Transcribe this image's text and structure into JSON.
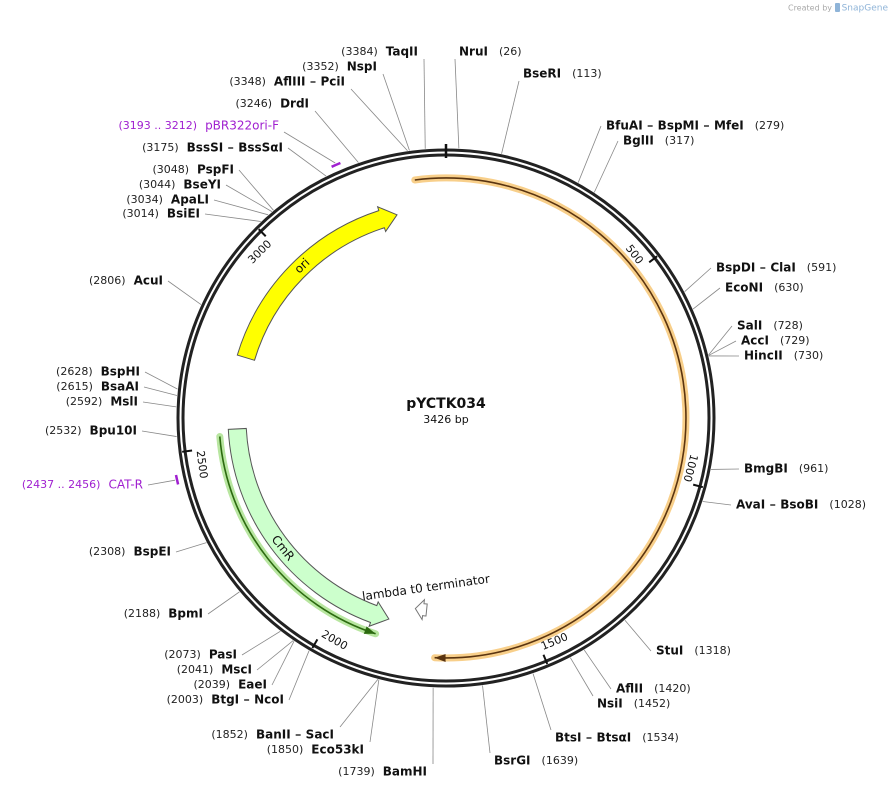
{
  "watermark": {
    "prefix": "Created by",
    "brand": "SnapGene"
  },
  "plasmid": {
    "name": "pYCTK034",
    "length": {
      "value": 3426,
      "label": "3426 bp"
    }
  },
  "ticks": [
    500,
    1000,
    1500,
    2000,
    2500,
    3000
  ],
  "features": [
    {
      "name": "ori",
      "start": 2729,
      "end": 3297,
      "strand": 1,
      "color": "#ffff00"
    },
    {
      "name": "CmR",
      "start": 1864,
      "end": 2541,
      "strand": -1,
      "color": "#ccffcc"
    },
    {
      "name": "lambda t0 terminator",
      "start": 1768,
      "end": 1800,
      "strand": 1,
      "color": "#ffffff"
    }
  ],
  "primers": [
    {
      "name": "pBR322ori-F",
      "location": "(3193 .. 3212)",
      "start": 3193,
      "end": 3212
    },
    {
      "name": "CAT-R",
      "location": "(2437 .. 2456)",
      "start": 2437,
      "end": 2456
    }
  ],
  "enzymes": [
    {
      "names": [
        "TaqII"
      ],
      "position": {
        "value": 3384,
        "label": "(3384)"
      }
    },
    {
      "names": [
        "NspI"
      ],
      "position": {
        "value": 3352,
        "label": "(3352)"
      }
    },
    {
      "names": [
        "AflIII",
        "PciI"
      ],
      "position": {
        "value": 3348,
        "label": "(3348)"
      }
    },
    {
      "names": [
        "DrdI"
      ],
      "position": {
        "value": 3246,
        "label": "(3246)"
      }
    },
    {
      "names": [
        "BssSI",
        "BssSαI"
      ],
      "position": {
        "value": 3175,
        "label": "(3175)"
      }
    },
    {
      "names": [
        "PspFI"
      ],
      "position": {
        "value": 3048,
        "label": "(3048)"
      }
    },
    {
      "names": [
        "BseYI"
      ],
      "position": {
        "value": 3044,
        "label": "(3044)"
      }
    },
    {
      "names": [
        "ApaLI"
      ],
      "position": {
        "value": 3034,
        "label": "(3034)"
      }
    },
    {
      "names": [
        "BsiEI"
      ],
      "position": {
        "value": 3014,
        "label": "(3014)"
      }
    },
    {
      "names": [
        "AcuI"
      ],
      "position": {
        "value": 2806,
        "label": "(2806)"
      }
    },
    {
      "names": [
        "BspHI"
      ],
      "position": {
        "value": 2628,
        "label": "(2628)"
      }
    },
    {
      "names": [
        "BsaAI"
      ],
      "position": {
        "value": 2615,
        "label": "(2615)"
      }
    },
    {
      "names": [
        "MslI"
      ],
      "position": {
        "value": 2592,
        "label": "(2592)"
      }
    },
    {
      "names": [
        "Bpu10I"
      ],
      "position": {
        "value": 2532,
        "label": "(2532)"
      }
    },
    {
      "names": [
        "BspEI"
      ],
      "position": {
        "value": 2308,
        "label": "(2308)"
      }
    },
    {
      "names": [
        "BpmI"
      ],
      "position": {
        "value": 2188,
        "label": "(2188)"
      }
    },
    {
      "names": [
        "PasI"
      ],
      "position": {
        "value": 2073,
        "label": "(2073)"
      }
    },
    {
      "names": [
        "MscI"
      ],
      "position": {
        "value": 2041,
        "label": "(2041)"
      }
    },
    {
      "names": [
        "EaeI"
      ],
      "position": {
        "value": 2039,
        "label": "(2039)"
      }
    },
    {
      "names": [
        "BtgI",
        "NcoI"
      ],
      "position": {
        "value": 2003,
        "label": "(2003)"
      }
    },
    {
      "names": [
        "BanII",
        "SacI"
      ],
      "position": {
        "value": 1852,
        "label": "(1852)"
      }
    },
    {
      "names": [
        "Eco53kI"
      ],
      "position": {
        "value": 1850,
        "label": "(1850)"
      }
    },
    {
      "names": [
        "BamHI"
      ],
      "position": {
        "value": 1739,
        "label": "(1739)"
      }
    },
    {
      "names": [
        "NruI"
      ],
      "position": {
        "value": 26,
        "label": "(26)"
      }
    },
    {
      "names": [
        "BseRI"
      ],
      "position": {
        "value": 113,
        "label": "(113)"
      }
    },
    {
      "names": [
        "BfuAI",
        "BspMI",
        "MfeI"
      ],
      "position": {
        "value": 279,
        "label": "(279)"
      }
    },
    {
      "names": [
        "BglII"
      ],
      "position": {
        "value": 317,
        "label": "(317)"
      }
    },
    {
      "names": [
        "BspDI",
        "ClaI"
      ],
      "position": {
        "value": 591,
        "label": "(591)"
      }
    },
    {
      "names": [
        "EcoNI"
      ],
      "position": {
        "value": 630,
        "label": "(630)"
      }
    },
    {
      "names": [
        "SalI"
      ],
      "position": {
        "value": 728,
        "label": "(728)"
      }
    },
    {
      "names": [
        "AccI"
      ],
      "position": {
        "value": 729,
        "label": "(729)"
      }
    },
    {
      "names": [
        "HincII"
      ],
      "position": {
        "value": 730,
        "label": "(730)"
      }
    },
    {
      "names": [
        "BmgBI"
      ],
      "position": {
        "value": 961,
        "label": "(961)"
      }
    },
    {
      "names": [
        "AvaI",
        "BsoBI"
      ],
      "position": {
        "value": 1028,
        "label": "(1028)"
      }
    },
    {
      "names": [
        "StuI"
      ],
      "position": {
        "value": 1318,
        "label": "(1318)"
      }
    },
    {
      "names": [
        "AflII"
      ],
      "position": {
        "value": 1420,
        "label": "(1420)"
      }
    },
    {
      "names": [
        "NsiI"
      ],
      "position": {
        "value": 1452,
        "label": "(1452)"
      }
    },
    {
      "names": [
        "BtsI",
        "BtsαI"
      ],
      "position": {
        "value": 1534,
        "label": "(1534)"
      }
    },
    {
      "names": [
        "BsrGI"
      ],
      "position": {
        "value": 1639,
        "label": "(1639)"
      }
    }
  ]
}
